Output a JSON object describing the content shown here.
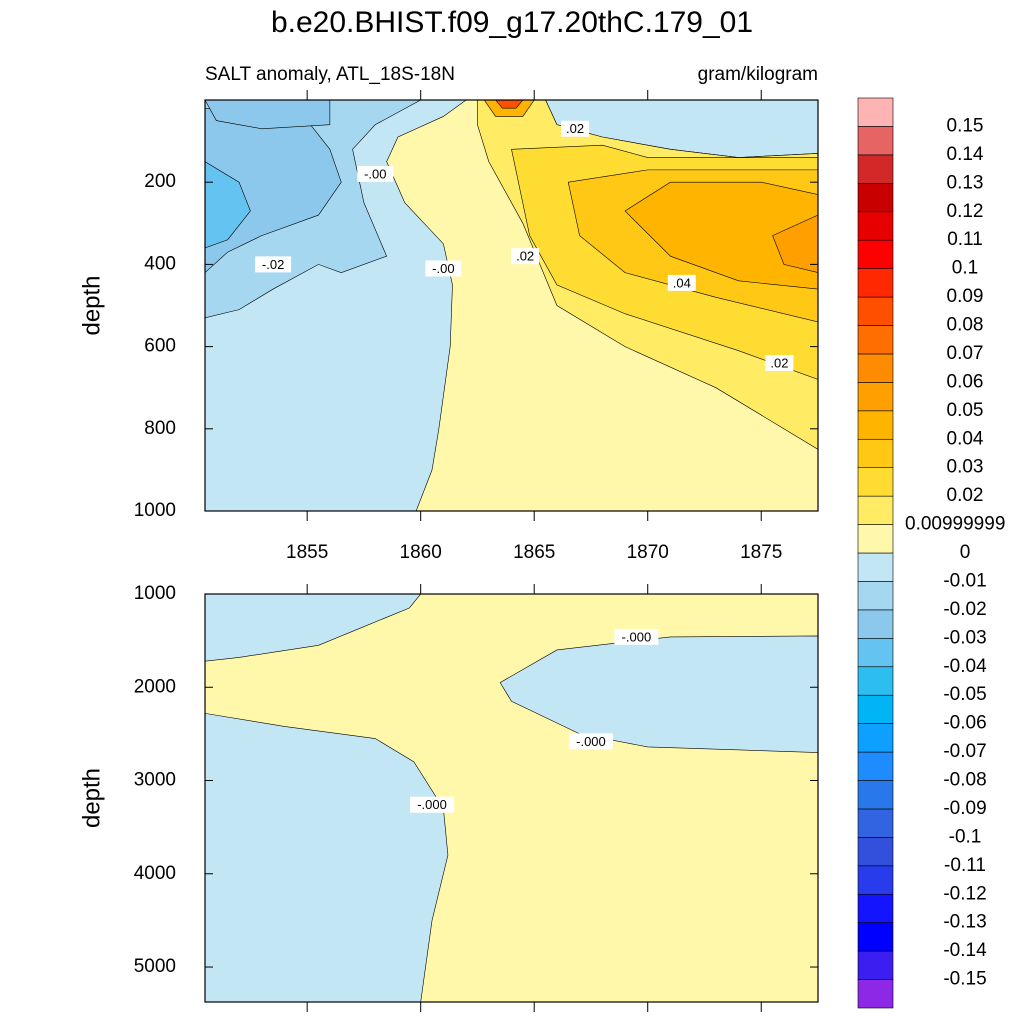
{
  "chart_data": {
    "type": "contour",
    "title": "b.e20.BHIST.f09_g17.20thC.179_01",
    "subtitle_left": "SALT anomaly, ATL_18S-18N",
    "subtitle_right": "gram/kilogram",
    "colorbar": {
      "levels": [
        -0.15,
        -0.14,
        -0.13,
        -0.12,
        -0.11,
        -0.1,
        -0.09,
        -0.08,
        -0.07,
        -0.06,
        -0.05,
        -0.04,
        -0.03,
        -0.02,
        -0.01,
        0,
        {
          "value": 0.01,
          "label": "0.00999999"
        },
        0.02,
        0.03,
        0.04,
        0.05,
        0.06,
        0.07,
        0.08,
        0.09,
        0.1,
        0.11,
        0.12,
        0.13,
        0.14,
        0.15
      ],
      "colors": [
        "#8c28e6",
        "#3c1ef0",
        "#0000ff",
        "#1414ff",
        "#283ceb",
        "#3250dc",
        "#3264e1",
        "#2878eb",
        "#1e8cff",
        "#0ea0ff",
        "#00b4f5",
        "#2dbef0",
        "#64c3f0",
        "#8cc8eb",
        "#a5d7f0",
        "#c3e6f5",
        "#fff8aa",
        "#ffeb64",
        "#ffdc32",
        "#ffc814",
        "#ffb400",
        "#ffa000",
        "#ff8c00",
        "#ff6e00",
        "#ff5000",
        "#ff2800",
        "#ff0000",
        "#e60000",
        "#c80000",
        "#d22828",
        "#e66464",
        "#ffb4b4"
      ]
    },
    "panels": [
      {
        "ylabel": "depth",
        "xlim": [
          1850.5,
          1877.5
        ],
        "xticks": [
          1855,
          1860,
          1865,
          1870,
          1875
        ],
        "ylim": [
          0,
          1000
        ],
        "yticks": [
          200,
          400,
          600,
          800,
          1000
        ],
        "regions": [
          {
            "level": 0,
            "x": [
              1850.5,
              1877.5,
              1877.5,
              1850.5
            ],
            "y": [
              0,
              0,
              1000,
              1000
            ]
          },
          {
            "level": -0.01,
            "x": [
              1850.5,
              1862,
              1861,
              1859,
              1858.5,
              1859.3,
              1861,
              1861.4,
              1861.3,
              1860.8,
              1860.5,
              1859.8,
              1850.5
            ],
            "y": [
              0,
              0,
              40,
              90,
              150,
              250,
              350,
              450,
              600,
              800,
              900,
              1000,
              1000
            ]
          },
          {
            "level": -0.01,
            "x": [
              1865.5,
              1877.5,
              1877.5,
              1874,
              1871,
              1868,
              1866
            ],
            "y": [
              0,
              0,
              130,
              140,
              120,
              90,
              60
            ]
          },
          {
            "level": -0.02,
            "x": [
              1850.5,
              1860,
              1858,
              1857,
              1857.5,
              1858.5,
              1856.5,
              1855.5,
              1853.5,
              1852,
              1850.5
            ],
            "y": [
              0,
              0,
              60,
              120,
              250,
              380,
              420,
              400,
              460,
              510,
              530
            ]
          },
          {
            "level": -0.03,
            "x": [
              1850.5,
              1855,
              1856,
              1856.5,
              1855.5,
              1853,
              1851.5,
              1850.5
            ],
            "y": [
              20,
              50,
              120,
              200,
              280,
              330,
              370,
              420
            ]
          },
          {
            "level": -0.03,
            "x": [
              1850.5,
              1856,
              1856,
              1853,
              1851
            ],
            "y": [
              0,
              0,
              60,
              70,
              50
            ]
          },
          {
            "level": -0.04,
            "x": [
              1850.5,
              1852,
              1852.5,
              1851.5,
              1850.5
            ],
            "y": [
              150,
              200,
              270,
              340,
              360
            ]
          },
          {
            "level": 0.01,
            "x": [
              1862.5,
              1865.5,
              1866,
              1868,
              1871,
              1874,
              1877.5,
              1877.5,
              1873,
              1869,
              1866,
              1864.5,
              1863,
              1862.5
            ],
            "y": [
              0,
              0,
              60,
              90,
              120,
              140,
              130,
              850,
              700,
              600,
              500,
              300,
              150,
              60
            ]
          },
          {
            "level": 0.02,
            "x": [
              1864,
              1868,
              1870,
              1877.5,
              1877.5,
              1874,
              1869,
              1866,
              1864.8
            ],
            "y": [
              120,
              110,
              140,
              140,
              680,
              610,
              520,
              450,
              330
            ]
          },
          {
            "level": 0.03,
            "x": [
              1866.5,
              1870,
              1877.5,
              1877.5,
              1873,
              1869,
              1867
            ],
            "y": [
              200,
              170,
              170,
              540,
              480,
              420,
              330
            ]
          },
          {
            "level": 0.04,
            "x": [
              1869,
              1871,
              1875,
              1877.5,
              1877.5,
              1874,
              1871
            ],
            "y": [
              270,
              200,
              200,
              230,
              460,
              440,
              380
            ]
          },
          {
            "level": 0.05,
            "x": [
              1875.5,
              1877.5,
              1877.5,
              1876
            ],
            "y": [
              330,
              280,
              420,
              400
            ]
          },
          {
            "level": 0.04,
            "x": [
              1862.8,
              1865,
              1864.5,
              1863.3
            ],
            "y": [
              0,
              0,
              40,
              40
            ]
          },
          {
            "level": 0.08,
            "x": [
              1863.3,
              1864.5,
              1864.2,
              1863.6
            ],
            "y": [
              0,
              0,
              20,
              20
            ]
          }
        ],
        "contour_labels": [
          {
            "text": ".02",
            "x": 1866.8,
            "y": 70
          },
          {
            "text": "-.00",
            "x": 1858,
            "y": 180
          },
          {
            "text": "-.02",
            "x": 1853.5,
            "y": 400
          },
          {
            "text": "-.00",
            "x": 1861,
            "y": 410
          },
          {
            "text": ".02",
            "x": 1864.6,
            "y": 380
          },
          {
            "text": ".04",
            "x": 1871.5,
            "y": 445
          },
          {
            "text": ".02",
            "x": 1875.8,
            "y": 640
          }
        ]
      },
      {
        "ylabel": "depth",
        "ylim": [
          1000,
          5375
        ],
        "yticks": [
          1000,
          2000,
          3000,
          4000,
          5000
        ],
        "regions": [
          {
            "level": 0,
            "x": [
              1850.5,
              1877.5,
              1877.5,
              1850.5
            ],
            "y": [
              1000,
              1000,
              5375,
              5375
            ]
          },
          {
            "level": -0.01,
            "x": [
              1850.5,
              1860,
              1859.5,
              1857,
              1855.5,
              1852,
              1850.5
            ],
            "y": [
              1000,
              1000,
              1150,
              1400,
              1550,
              1680,
              1720
            ]
          },
          {
            "level": -0.01,
            "x": [
              1877.5,
              1871,
              1866,
              1863.5,
              1864,
              1867,
              1870,
              1877.5
            ],
            "y": [
              1450,
              1460,
              1600,
              1950,
              2150,
              2500,
              2640,
              2700
            ]
          },
          {
            "level": -0.01,
            "x": [
              1850.5,
              1854,
              1858,
              1859.7,
              1861,
              1861.2,
              1860.5,
              1860,
              1850.5
            ],
            "y": [
              2280,
              2420,
              2550,
              2800,
              3300,
              3800,
              4500,
              5375,
              5375
            ]
          }
        ],
        "contour_labels": [
          {
            "text": "-.000",
            "x": 1869.5,
            "y": 1460
          },
          {
            "text": "-.000",
            "x": 1867.5,
            "y": 2580
          },
          {
            "text": "-.000",
            "x": 1860.5,
            "y": 3260
          }
        ]
      }
    ]
  }
}
